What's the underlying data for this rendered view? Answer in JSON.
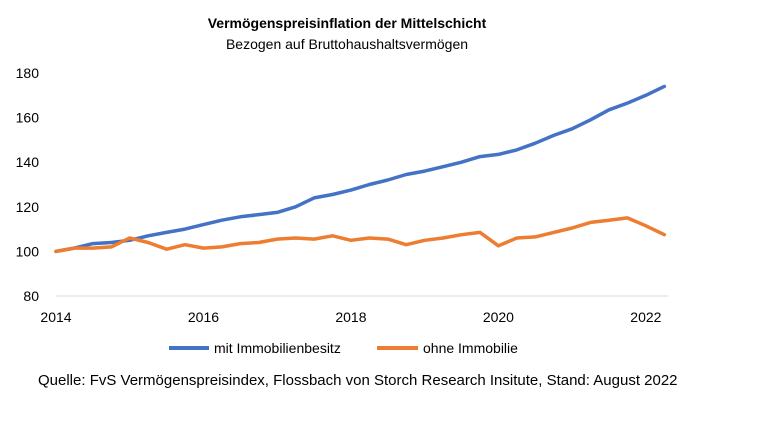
{
  "chart_data": {
    "type": "line",
    "title": "Vermögenspreisinflation der Mittelschicht",
    "subtitle": "Bezogen auf Bruttohaushaltsvermögen",
    "xlabel": "",
    "ylabel": "",
    "xlim": [
      2014,
      2022.3
    ],
    "ylim": [
      80,
      180
    ],
    "x_ticks": [
      "2014",
      "2016",
      "2018",
      "2020",
      "2022"
    ],
    "y_ticks": [
      "80",
      "100",
      "120",
      "140",
      "160",
      "180"
    ],
    "grid": false,
    "legend_position": "bottom",
    "series": [
      {
        "name": "mit Immobilienbesitz",
        "color": "#4472C4",
        "x": [
          2014.0,
          2014.25,
          2014.5,
          2014.75,
          2015.0,
          2015.25,
          2015.5,
          2015.75,
          2016.0,
          2016.25,
          2016.5,
          2016.75,
          2017.0,
          2017.25,
          2017.5,
          2017.75,
          2018.0,
          2018.25,
          2018.5,
          2018.75,
          2019.0,
          2019.25,
          2019.5,
          2019.75,
          2020.0,
          2020.25,
          2020.5,
          2020.75,
          2021.0,
          2021.25,
          2021.5,
          2021.75,
          2022.0,
          2022.25
        ],
        "values": [
          100,
          101.5,
          103.5,
          104,
          105,
          107,
          108.5,
          110,
          112,
          114,
          115.5,
          116.5,
          117.5,
          120,
          124,
          125.5,
          127.5,
          130,
          132,
          134.5,
          136,
          138,
          140,
          142.5,
          143.5,
          145.5,
          148.5,
          152,
          155,
          159,
          163.5,
          166.5,
          170,
          174
        ]
      },
      {
        "name": "ohne Immobilie",
        "color": "#ED7D31",
        "x": [
          2014.0,
          2014.25,
          2014.5,
          2014.75,
          2015.0,
          2015.25,
          2015.5,
          2015.75,
          2016.0,
          2016.25,
          2016.5,
          2016.75,
          2017.0,
          2017.25,
          2017.5,
          2017.75,
          2018.0,
          2018.25,
          2018.5,
          2018.75,
          2019.0,
          2019.25,
          2019.5,
          2019.75,
          2020.0,
          2020.25,
          2020.5,
          2020.75,
          2021.0,
          2021.25,
          2021.5,
          2021.75,
          2022.0,
          2022.25
        ],
        "values": [
          100,
          101.5,
          101.5,
          102,
          106,
          104,
          101,
          103,
          101.5,
          102,
          103.5,
          104,
          105.5,
          106,
          105.5,
          107,
          105,
          106,
          105.5,
          103,
          105,
          106,
          107.5,
          108.5,
          102.5,
          106,
          106.5,
          108.5,
          110.5,
          113,
          114,
          115,
          111.5,
          107.5
        ]
      }
    ],
    "source": "Quelle: FvS Vermögenspreisindex, Flossbach von Storch Research Insitute, Stand: August 2022"
  }
}
